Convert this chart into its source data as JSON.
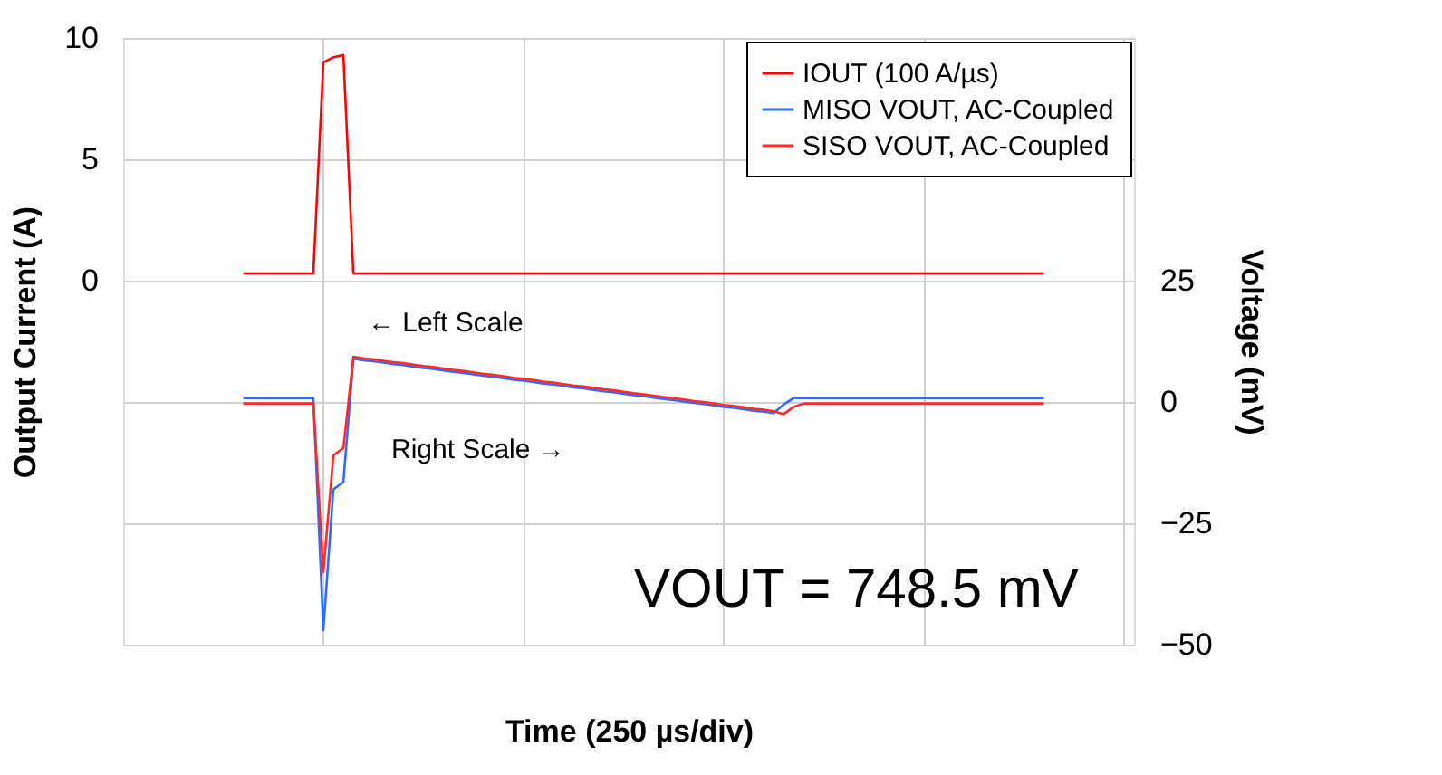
{
  "chart_data": {
    "type": "line",
    "categories": [
      null,
      null,
      null,
      null,
      null,
      null,
      null,
      null,
      null,
      null,
      null,
      null,
      null,
      null,
      null,
      null,
      null,
      null,
      null,
      null,
      null,
      null,
      null,
      null,
      null,
      null,
      null,
      null,
      null,
      null,
      null,
      null,
      null,
      null,
      null,
      null,
      null,
      null,
      null,
      null,
      null,
      null,
      null,
      null,
      null,
      null,
      null,
      null,
      null,
      null,
      null,
      null,
      null,
      null,
      null,
      null,
      null,
      null,
      null,
      null,
      null,
      null,
      null,
      null,
      null,
      null,
      null,
      null,
      null,
      null,
      null,
      null,
      null,
      null,
      null,
      null,
      null,
      null,
      null,
      null,
      null,
      null,
      null,
      null,
      null,
      null,
      null,
      null,
      null,
      null,
      null,
      null,
      null,
      null,
      null,
      null,
      null,
      null,
      null,
      null,
      null,
      null
    ],
    "xlabel": "Time (250 µs/div)",
    "ylabel": "Output Current (A)",
    "y2label": "Voltage (mV)",
    "ylim": [
      -15,
      10
    ],
    "yticks": [
      0,
      5,
      10
    ],
    "y2lim": [
      -50,
      75
    ],
    "y2ticks": [
      -50,
      -25,
      0,
      25
    ],
    "grid": true,
    "legend": "top right",
    "annotations": [
      "← Left Scale",
      "Right Scale →",
      "VOUT = 748.5 mV"
    ],
    "series": [
      {
        "name": "IOUT (100 A/µs)",
        "color": "#ff0000",
        "values": [
          null,
          null,
          null,
          null,
          null,
          null,
          null,
          null,
          null,
          null,
          null,
          null,
          0.3,
          0.3,
          0.3,
          0.3,
          0.3,
          0.3,
          0.3,
          0.3,
          9.0,
          9.2,
          9.3,
          0.3,
          0.3,
          0.3,
          0.3,
          0.3,
          0.3,
          0.3,
          0.3,
          0.3,
          0.3,
          0.3,
          0.3,
          0.3,
          0.3,
          0.3,
          0.3,
          0.3,
          0.3,
          0.3,
          0.3,
          0.3,
          0.3,
          0.3,
          0.3,
          0.3,
          0.3,
          0.3,
          0.3,
          0.3,
          0.3,
          0.3,
          0.3,
          0.3,
          0.3,
          0.3,
          0.3,
          0.3,
          0.3,
          0.3,
          0.3,
          0.3,
          0.3,
          0.3,
          0.3,
          0.3,
          0.3,
          0.3,
          0.3,
          0.3,
          0.3,
          0.3,
          0.3,
          0.3,
          0.3,
          0.3,
          0.3,
          0.3,
          0.3,
          0.3,
          0.3,
          0.3,
          0.3,
          0.3,
          0.3,
          0.3,
          0.3,
          0.3,
          0.3,
          0.3,
          0.3,
          null,
          null,
          null,
          null,
          null,
          null,
          null,
          null,
          null
        ]
      },
      {
        "name": "MISO VOUT, AC-Coupled",
        "axis": "y2",
        "color": "#2f6bff",
        "values": [
          null,
          null,
          null,
          null,
          null,
          null,
          null,
          null,
          null,
          null,
          null,
          null,
          0.8,
          0.8,
          0.8,
          0.8,
          0.8,
          0.8,
          0.8,
          0.8,
          -47,
          -18,
          -16.5,
          8.9,
          8.6,
          8.4,
          8.1,
          7.8,
          7.6,
          7.3,
          7.0,
          6.8,
          6.5,
          6.2,
          6.0,
          5.7,
          5.4,
          5.2,
          4.9,
          4.6,
          4.4,
          4.1,
          3.8,
          3.6,
          3.3,
          3.0,
          2.8,
          2.5,
          2.2,
          2.0,
          1.7,
          1.4,
          1.2,
          0.9,
          0.6,
          0.4,
          0.1,
          -0.2,
          -0.4,
          -0.7,
          -1.0,
          -1.2,
          -1.5,
          -1.8,
          -2.0,
          -2.3,
          -0.5,
          0.8,
          0.8,
          0.8,
          0.8,
          0.8,
          0.8,
          0.8,
          0.8,
          0.8,
          0.8,
          0.8,
          0.8,
          0.8,
          0.8,
          0.8,
          0.8,
          0.8,
          0.8,
          0.8,
          0.8,
          0.8,
          0.8,
          0.8,
          0.8,
          0.8,
          0.8,
          null,
          null,
          null,
          null,
          null,
          null,
          null,
          null,
          null
        ]
      },
      {
        "name": "SISO VOUT, AC-Coupled",
        "axis": "y2",
        "color": "#ff2a2a",
        "values": [
          null,
          null,
          null,
          null,
          null,
          null,
          null,
          null,
          null,
          null,
          null,
          null,
          -0.3,
          -0.3,
          -0.3,
          -0.3,
          -0.3,
          -0.3,
          -0.3,
          -0.3,
          -35,
          -11,
          -9.5,
          9.3,
          9.0,
          8.8,
          8.5,
          8.2,
          8.0,
          7.7,
          7.4,
          7.2,
          6.9,
          6.6,
          6.4,
          6.1,
          5.8,
          5.6,
          5.3,
          5.0,
          4.8,
          4.5,
          4.2,
          4.0,
          3.7,
          3.4,
          3.2,
          2.9,
          2.6,
          2.4,
          2.1,
          1.8,
          1.6,
          1.3,
          1.0,
          0.8,
          0.5,
          0.2,
          0.0,
          -0.3,
          -0.6,
          -0.8,
          -1.1,
          -1.4,
          -1.6,
          -1.9,
          -2.5,
          -1.0,
          -0.3,
          -0.3,
          -0.3,
          -0.3,
          -0.3,
          -0.3,
          -0.3,
          -0.3,
          -0.3,
          -0.3,
          -0.3,
          -0.3,
          -0.3,
          -0.3,
          -0.3,
          -0.3,
          -0.3,
          -0.3,
          -0.3,
          -0.3,
          -0.3,
          -0.3,
          -0.3,
          -0.3,
          -0.3,
          null,
          null,
          null,
          null,
          null,
          null,
          null,
          null,
          null
        ]
      }
    ]
  }
}
